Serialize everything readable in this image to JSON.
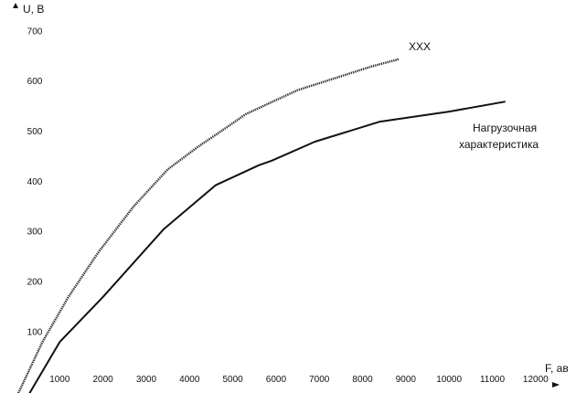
{
  "chart_data": {
    "type": "line",
    "xlabel": "F, ав",
    "ylabel": "U, В",
    "xlim": [
      0,
      12300
    ],
    "ylim": [
      -40,
      730
    ],
    "xticks": [
      1000,
      2000,
      3000,
      4000,
      5000,
      6000,
      7000,
      8000,
      9000,
      10000,
      11000,
      12000
    ],
    "yticks": [
      100,
      200,
      300,
      400,
      500,
      600,
      700
    ],
    "grid": false,
    "legend": "none",
    "series": [
      {
        "name": "ХХХ",
        "style": "dotted",
        "color": "#333333",
        "x": [
          0,
          600,
          1200,
          1900,
          2700,
          3500,
          4200,
          4800,
          5300,
          5800,
          6500,
          7300,
          8200,
          8850
        ],
        "y": [
          -30,
          80,
          170,
          260,
          350,
          425,
          470,
          505,
          535,
          555,
          583,
          605,
          630,
          645
        ]
      },
      {
        "name": "Нагрузочная характеристика",
        "style": "solid",
        "color": "#111111",
        "x": [
          250,
          1000,
          2000,
          3400,
          4600,
          5600,
          5900,
          6900,
          8400,
          10000,
          11300
        ],
        "y": [
          -30,
          80,
          170,
          305,
          393,
          433,
          442,
          480,
          520,
          540,
          560
        ]
      }
    ]
  },
  "annotations": {
    "xxx_label": "ХХХ",
    "load_line1": "Нагрузочная",
    "load_line2": "характеристика"
  }
}
